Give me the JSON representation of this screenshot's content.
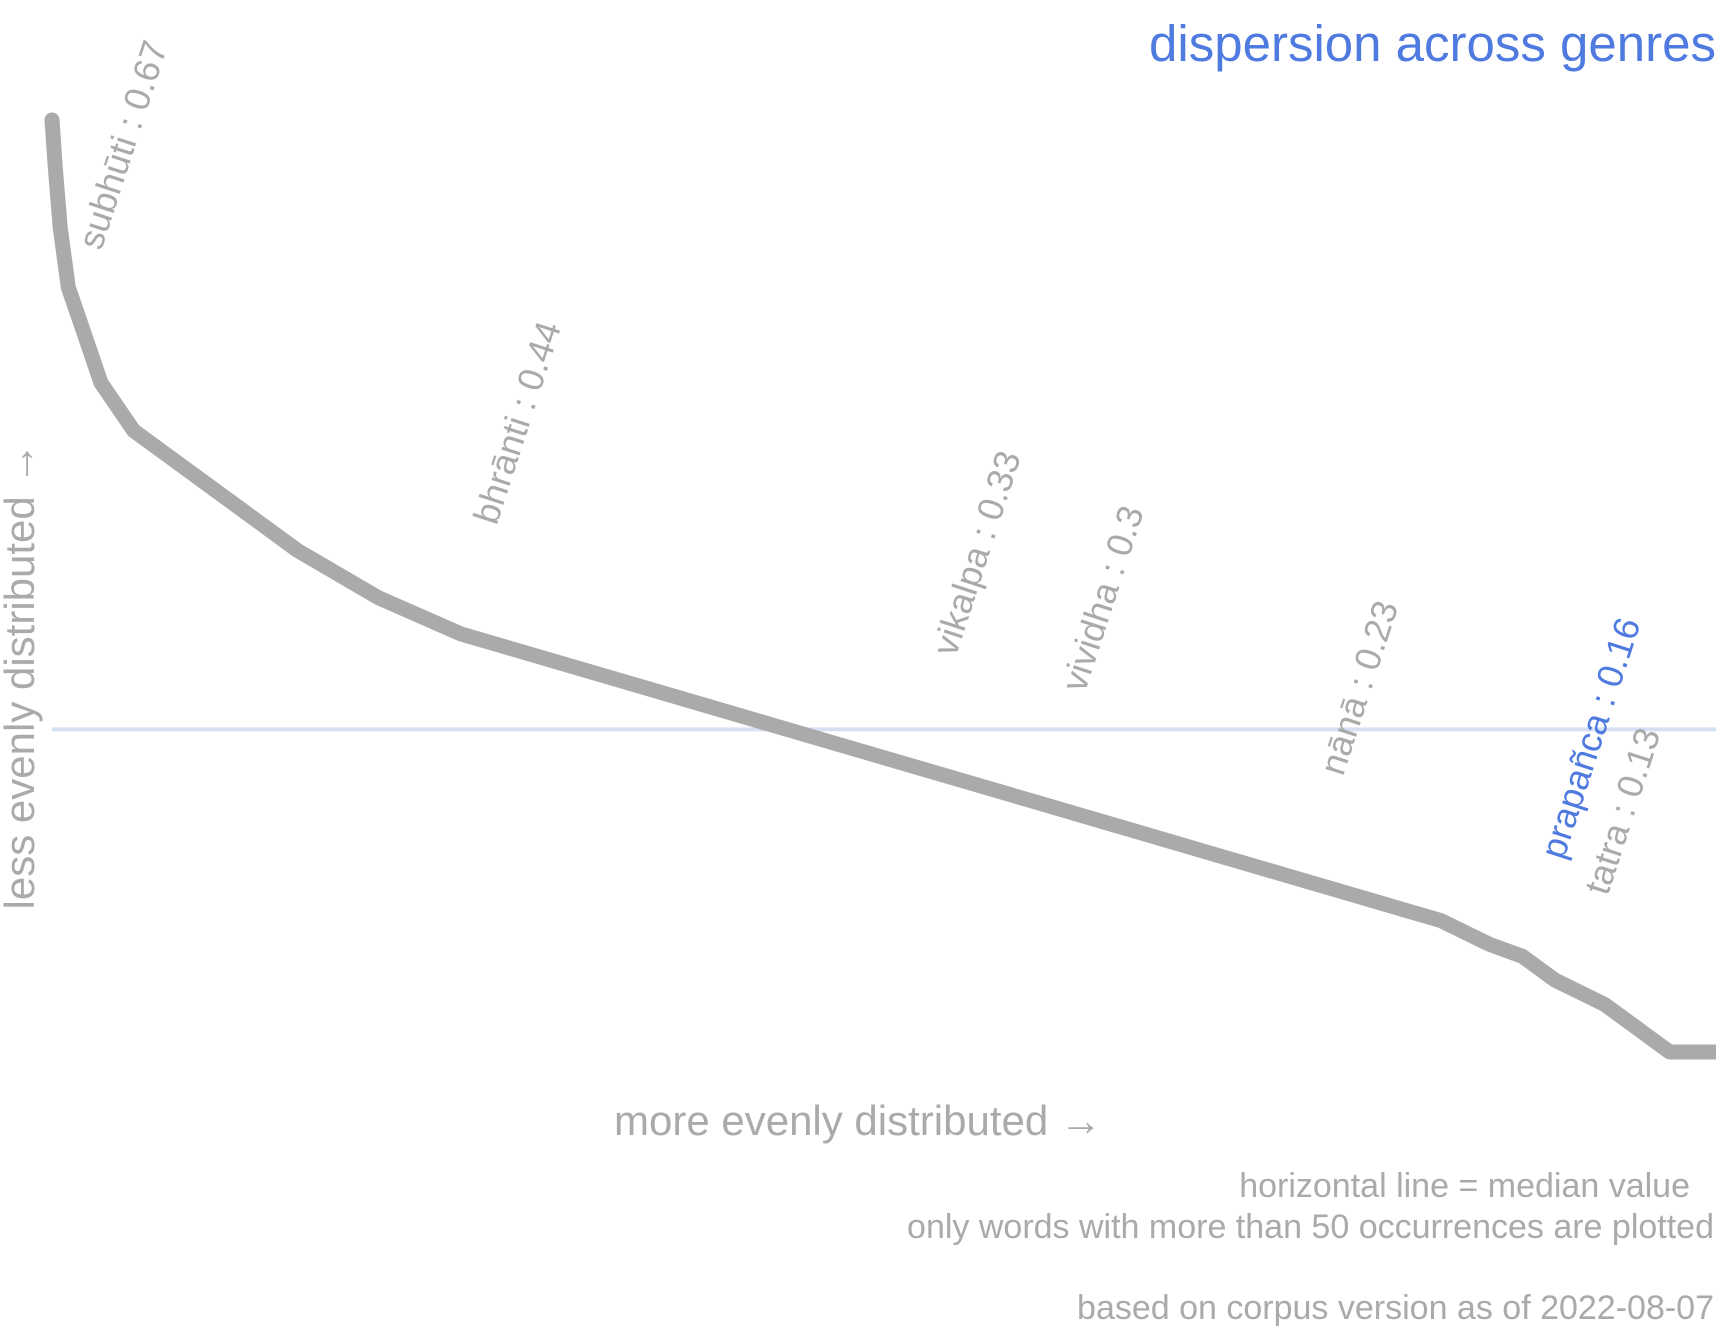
{
  "colors": {
    "curve": "#aaaaaa",
    "median_line": "#d6e0f5",
    "text_muted": "#aaaaaa",
    "accent": "#4f7be0"
  },
  "chart_data": {
    "type": "scatter",
    "title": "dispersion across genres",
    "xlabel": "more evenly distributed →",
    "ylabel": "less evenly distributed →",
    "notes": {
      "median_note": "horizontal line = median value",
      "filter_note": "only words with more than 50 occurrences are plotted",
      "corpus_note": "based on corpus version as of 2022-08-07"
    },
    "median_value": 0.27,
    "ylim": [
      0.0,
      0.78
    ],
    "xlim": [
      0,
      1
    ],
    "grid": false,
    "legend": "none",
    "x_description": "rank from least to most evenly distributed (0 = first, 1 = last)",
    "curve": {
      "x": [
        0.0,
        0.002,
        0.005,
        0.01,
        0.02,
        0.03,
        0.05,
        0.08,
        0.1,
        0.12,
        0.15,
        0.2,
        0.25,
        0.3,
        0.35,
        0.4,
        0.45,
        0.5,
        0.55,
        0.6,
        0.65,
        0.7,
        0.75,
        0.8,
        0.85,
        0.88,
        0.9,
        0.92,
        0.95,
        0.97,
        0.98,
        0.99,
        0.995,
        1.0
      ],
      "y": [
        0.78,
        0.74,
        0.69,
        0.64,
        0.6,
        0.56,
        0.52,
        0.49,
        0.47,
        0.45,
        0.42,
        0.38,
        0.35,
        0.33,
        0.31,
        0.29,
        0.27,
        0.25,
        0.23,
        0.21,
        0.19,
        0.17,
        0.15,
        0.13,
        0.11,
        0.09,
        0.08,
        0.06,
        0.04,
        0.02,
        0.01,
        0.0,
        0.0,
        0.0
      ]
    },
    "annotations": [
      {
        "label": "subhūti : 0.67",
        "x": 0.03,
        "y": 0.67,
        "highlight": false
      },
      {
        "label": "bhrānti : 0.44",
        "x": 0.272,
        "y": 0.44,
        "highlight": false
      },
      {
        "label": "vikalpa : 0.33",
        "x": 0.553,
        "y": 0.33,
        "highlight": false
      },
      {
        "label": "vividha : 0.3",
        "x": 0.632,
        "y": 0.3,
        "highlight": false
      },
      {
        "label": "nānā : 0.23",
        "x": 0.79,
        "y": 0.23,
        "highlight": false
      },
      {
        "label": "prapañca : 0.16",
        "x": 0.925,
        "y": 0.16,
        "highlight": true
      },
      {
        "label": "tatra : 0.13",
        "x": 0.952,
        "y": 0.13,
        "highlight": false
      }
    ]
  }
}
